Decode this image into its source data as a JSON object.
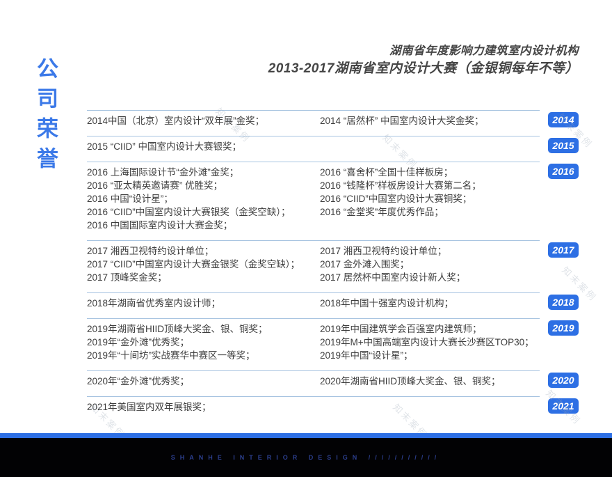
{
  "page": {
    "vertical_title": "公司荣誉",
    "header": {
      "line1": "湖南省年度影响力建筑室内设计机构",
      "line2": "2013-2017湖南省室内设计大赛（金银铜每年不等）"
    },
    "watermark_text": "知末案例",
    "footer": {
      "brand_text": "SHANHE INTERIOR DESIGN ///////////"
    },
    "colors": {
      "accent_blue": "#2d6fe4",
      "title_blue": "#3b79e8",
      "divider_blue": "#a6c3e0",
      "footer_text_blue": "#2c3f8e",
      "footer_bg": "#020204"
    }
  },
  "awards": [
    {
      "year": "2014",
      "left": [
        "2014中国（北京）室内设计“双年展”金奖；"
      ],
      "right": [
        "2014 “居然杯” 中国室内设计大奖金奖；"
      ]
    },
    {
      "year": "2015",
      "left": [
        "2015 “CIID” 中国室内设计大赛银奖；"
      ],
      "right": []
    },
    {
      "year": "2016",
      "left": [
        "2016 上海国际设计节“金外滩”金奖；",
        "2016 “亚太精英邀请赛” 优胜奖；",
        "2016 中国“设计星”；",
        "2016 “CIID”中国室内设计大赛银奖（金奖空缺）；",
        "2016 中国国际室内设计大赛金奖；"
      ],
      "right": [
        "2016 “喜舍杯”全国十佳样板房；",
        "2016 “钱隆杯”样板房设计大赛第二名；",
        "2016 “CIID”中国室内设计大赛铜奖；",
        "2016 “金堂奖”年度优秀作品；"
      ]
    },
    {
      "year": "2017",
      "left": [
        "2017 湘西卫视特约设计单位；",
        "2017 “CIID”中国室内设计大赛金银奖（金奖空缺）；",
        "2017 顶峰奖金奖；"
      ],
      "right": [
        "2017 湘西卫视特约设计单位；",
        "2017 金外滩入围奖；",
        "2017 居然杯中国室内设计新人奖；"
      ]
    },
    {
      "year": "2018",
      "left": [
        "2018年湖南省优秀室内设计师；"
      ],
      "right": [
        "2018年中国十强室内设计机构；"
      ]
    },
    {
      "year": "2019",
      "left": [
        "2019年湖南省HIID顶峰大奖金、银、铜奖；",
        "2019年“金外滩”优秀奖；",
        "2019年“十间坊”实战赛华中赛区一等奖；"
      ],
      "right": [
        "2019年中国建筑学会百强室内建筑师；",
        "2019年M+中国高端室内设计大赛长沙赛区TOP30；",
        "2019年中国“设计星”；"
      ]
    },
    {
      "year": "2020",
      "left": [
        "2020年“金外滩”优秀奖；"
      ],
      "right": [
        "2020年湖南省HIID顶峰大奖金、银、铜奖；"
      ]
    },
    {
      "year": "2021",
      "left": [
        "2021年美国室内双年展银奖；"
      ],
      "right": []
    }
  ]
}
